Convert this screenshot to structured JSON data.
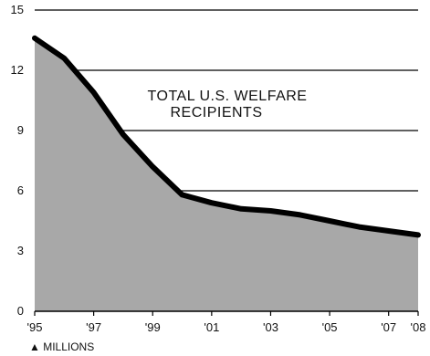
{
  "chart_data": {
    "type": "area",
    "title_lines": [
      "TOTAL U.S. WELFARE",
      "RECIPIENTS"
    ],
    "unit_label": "▲ MILLIONS",
    "x": [
      1995,
      1996,
      1997,
      1998,
      1999,
      2000,
      2001,
      2002,
      2003,
      2004,
      2005,
      2006,
      2007,
      2008
    ],
    "values": [
      13.6,
      12.6,
      10.9,
      8.8,
      7.2,
      5.8,
      5.4,
      5.1,
      5.0,
      4.8,
      4.5,
      4.2,
      4.0,
      3.8
    ],
    "x_ticks": [
      1995,
      1997,
      1999,
      2001,
      2003,
      2005,
      2007,
      2008
    ],
    "x_tick_labels": [
      "'95",
      "'97",
      "'99",
      "'01",
      "'03",
      "'05",
      "'07",
      "'08"
    ],
    "y_ticks": [
      0,
      3,
      6,
      9,
      12,
      15
    ],
    "y_tick_labels": [
      "0",
      "3",
      "6",
      "9",
      "12",
      "15"
    ],
    "ylim": [
      0,
      15
    ],
    "xlim": [
      1995,
      2008
    ],
    "grid": true,
    "colors": {
      "area": "#a8a8a8",
      "line": "#000000",
      "grid": "#000000"
    }
  }
}
